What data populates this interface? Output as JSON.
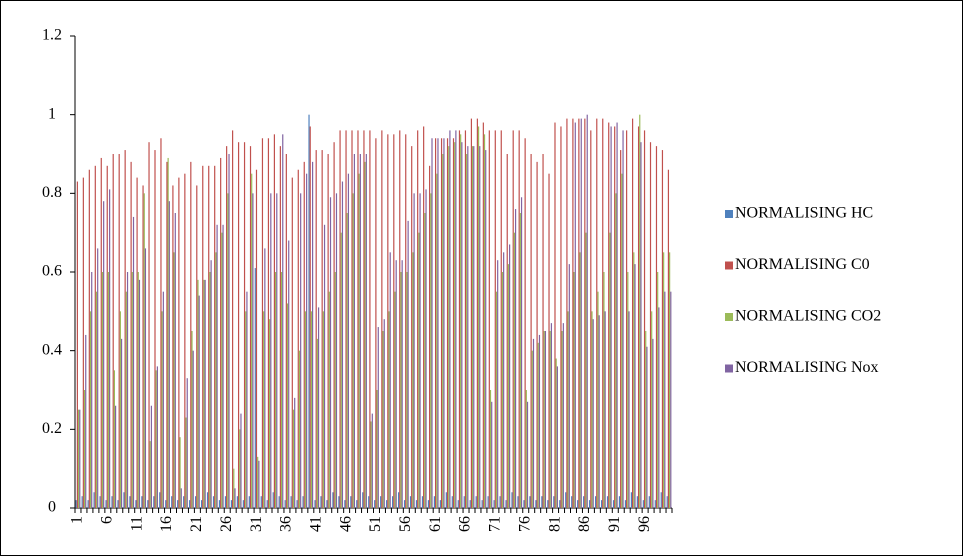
{
  "chart_data": {
    "type": "bar",
    "categories": [
      "1",
      null,
      null,
      null,
      null,
      "6",
      null,
      null,
      null,
      null,
      "11",
      null,
      null,
      null,
      null,
      "16",
      null,
      null,
      null,
      null,
      "21",
      null,
      null,
      null,
      null,
      "26",
      null,
      null,
      null,
      null,
      "31",
      null,
      null,
      null,
      null,
      "36",
      null,
      null,
      null,
      null,
      "41",
      null,
      null,
      null,
      null,
      "46",
      null,
      null,
      null,
      null,
      "51",
      null,
      null,
      null,
      null,
      "56",
      null,
      null,
      null,
      null,
      "61",
      null,
      null,
      null,
      null,
      "66",
      null,
      null,
      null,
      null,
      "71",
      null,
      null,
      null,
      null,
      "76",
      null,
      null,
      null,
      null,
      "81",
      null,
      null,
      null,
      null,
      "86",
      null,
      null,
      null,
      null,
      "91",
      null,
      null,
      null,
      null,
      "96",
      null,
      null,
      null,
      null
    ],
    "series": [
      {
        "name": "NORMALISING HC",
        "color": "#4f81bd",
        "values": [
          0.02,
          0.03,
          0.02,
          0.04,
          0.03,
          0.02,
          0.03,
          0.02,
          0.04,
          0.03,
          0.02,
          0.03,
          0.02,
          0.03,
          0.04,
          0.02,
          0.03,
          0.02,
          0.03,
          0.02,
          0.03,
          0.02,
          0.04,
          0.03,
          0.02,
          0.03,
          0.02,
          0.03,
          0.02,
          0.03,
          0.61,
          0.03,
          0.02,
          0.04,
          0.03,
          0.02,
          0.03,
          0.02,
          0.03,
          1.0,
          0.02,
          0.03,
          0.02,
          0.04,
          0.03,
          0.02,
          0.03,
          0.02,
          0.04,
          0.03,
          0.02,
          0.03,
          0.02,
          0.03,
          0.04,
          0.02,
          0.03,
          0.02,
          0.03,
          0.02,
          0.03,
          0.02,
          0.04,
          0.03,
          0.02,
          0.03,
          0.02,
          0.03,
          0.02,
          0.03,
          0.02,
          0.03,
          0.02,
          0.04,
          0.03,
          0.02,
          0.03,
          0.02,
          0.03,
          0.02,
          0.03,
          0.02,
          0.04,
          0.03,
          0.02,
          0.03,
          0.02,
          0.03,
          0.02,
          0.03,
          0.02,
          0.03,
          0.02,
          0.04,
          0.03,
          0.02,
          0.03,
          0.02,
          0.04,
          0.03
        ]
      },
      {
        "name": "NORMALISING C0",
        "color": "#c0504d",
        "values": [
          0.83,
          0.84,
          0.86,
          0.87,
          0.89,
          0.87,
          0.9,
          0.9,
          0.91,
          0.88,
          0.84,
          0.82,
          0.93,
          0.91,
          0.94,
          0.88,
          0.82,
          0.84,
          0.85,
          0.88,
          0.82,
          0.87,
          0.87,
          0.87,
          0.89,
          0.92,
          0.96,
          0.93,
          0.93,
          0.92,
          0.86,
          0.94,
          0.94,
          0.95,
          0.92,
          0.9,
          0.84,
          0.86,
          0.88,
          0.97,
          0.91,
          0.91,
          0.9,
          0.93,
          0.96,
          0.96,
          0.96,
          0.96,
          0.96,
          0.96,
          0.94,
          0.96,
          0.95,
          0.95,
          0.96,
          0.95,
          0.92,
          0.96,
          0.97,
          0.87,
          0.94,
          0.94,
          0.94,
          0.94,
          0.96,
          0.96,
          0.99,
          0.99,
          0.98,
          0.96,
          0.96,
          0.96,
          0.9,
          0.96,
          0.96,
          0.94,
          0.9,
          0.88,
          0.9,
          0.85,
          0.98,
          0.97,
          0.99,
          0.99,
          0.99,
          0.99,
          0.96,
          0.99,
          0.99,
          0.98,
          0.97,
          0.91,
          0.96,
          0.99,
          0.97,
          0.96,
          0.93,
          0.92,
          0.91,
          0.86
        ]
      },
      {
        "name": "NORMALISING CO2",
        "color": "#9bbb59",
        "values": [
          0.25,
          0.3,
          0.5,
          0.55,
          0.6,
          0.6,
          0.35,
          0.5,
          0.55,
          0.6,
          0.6,
          0.8,
          0.17,
          0.35,
          0.5,
          0.89,
          0.65,
          0.18,
          0.23,
          0.45,
          0.58,
          0.58,
          0.6,
          0.65,
          0.7,
          0.8,
          0.1,
          0.2,
          0.5,
          0.85,
          0.13,
          0.5,
          0.48,
          0.6,
          0.6,
          0.52,
          0.25,
          0.4,
          0.5,
          0.5,
          0.43,
          0.5,
          0.55,
          0.6,
          0.7,
          0.75,
          0.8,
          0.85,
          0.88,
          0.22,
          0.3,
          0.45,
          0.5,
          0.55,
          0.6,
          0.6,
          0.65,
          0.7,
          0.75,
          0.8,
          0.85,
          0.9,
          0.92,
          0.93,
          0.95,
          0.9,
          0.92,
          0.97,
          0.95,
          0.3,
          0.55,
          0.6,
          0.62,
          0.7,
          0.75,
          0.3,
          0.4,
          0.42,
          0.45,
          0.45,
          0.38,
          0.45,
          0.5,
          0.6,
          0.65,
          0.7,
          0.5,
          0.55,
          0.6,
          0.7,
          0.8,
          0.85,
          0.6,
          0.65,
          1.0,
          0.45,
          0.5,
          0.6,
          0.65,
          0.65
        ]
      },
      {
        "name": "NORMALISING Nox",
        "color": "#8064a2",
        "values": [
          0.25,
          0.44,
          0.6,
          0.66,
          0.78,
          0.81,
          0.26,
          0.43,
          0.6,
          0.74,
          0.58,
          0.66,
          0.26,
          0.36,
          0.55,
          0.78,
          0.75,
          0.05,
          0.33,
          0.4,
          0.54,
          0.58,
          0.63,
          0.72,
          0.72,
          0.9,
          0.05,
          0.24,
          0.55,
          0.8,
          0.12,
          0.66,
          0.8,
          0.8,
          0.95,
          0.68,
          0.28,
          0.8,
          0.85,
          0.88,
          0.51,
          0.72,
          0.79,
          0.8,
          0.83,
          0.85,
          0.9,
          0.9,
          0.9,
          0.24,
          0.46,
          0.48,
          0.65,
          0.63,
          0.63,
          0.73,
          0.8,
          0.8,
          0.81,
          0.94,
          0.94,
          0.94,
          0.96,
          0.96,
          0.93,
          0.92,
          0.92,
          0.92,
          0.91,
          0.27,
          0.63,
          0.65,
          0.67,
          0.76,
          0.79,
          0.27,
          0.43,
          0.44,
          0.45,
          0.47,
          0.36,
          0.47,
          0.62,
          0.98,
          0.99,
          1.0,
          0.48,
          0.49,
          0.5,
          0.97,
          0.98,
          0.96,
          0.5,
          0.62,
          0.93,
          0.41,
          0.43,
          0.51,
          0.55,
          0.55
        ]
      }
    ],
    "ylim": [
      0,
      1.2
    ],
    "yticks": [
      0,
      0.2,
      0.4,
      0.6,
      0.8,
      1,
      1.2
    ],
    "legend": "right"
  }
}
